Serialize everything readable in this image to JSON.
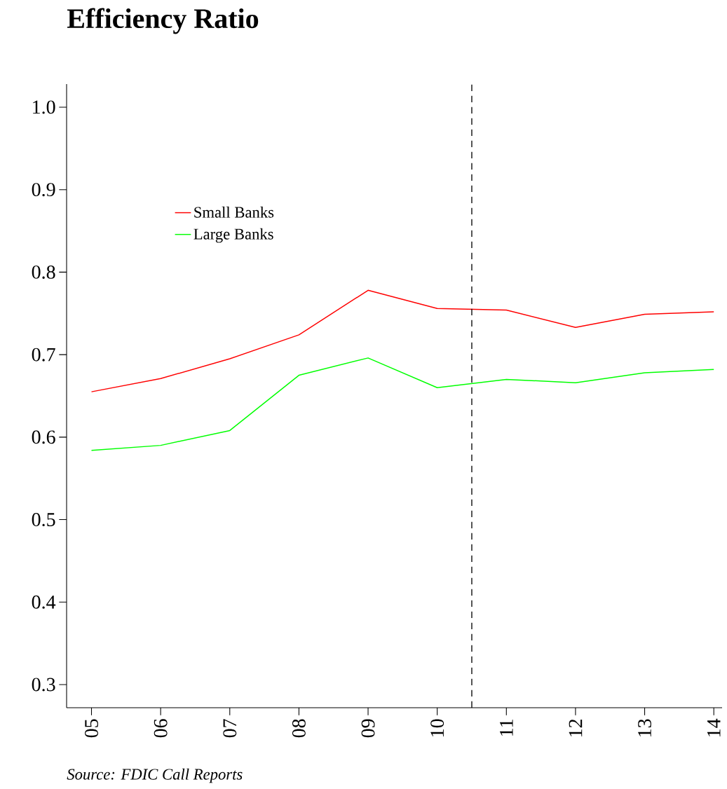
{
  "chart_data": {
    "type": "line",
    "title": "Efficiency Ratio",
    "x": [
      5,
      6,
      7,
      8,
      9,
      10,
      11,
      12,
      13,
      14
    ],
    "series": [
      {
        "name": "Small Banks",
        "color": "#ff0000",
        "values": [
          0.655,
          0.671,
          0.695,
          0.724,
          0.778,
          0.756,
          0.754,
          0.733,
          0.749,
          0.752
        ]
      },
      {
        "name": "Large Banks",
        "color": "#00ff00",
        "values": [
          0.584,
          0.59,
          0.608,
          0.675,
          0.696,
          0.66,
          0.67,
          0.666,
          0.678,
          0.682
        ]
      }
    ],
    "xlim": [
      4.64,
      14.12
    ],
    "ylim": [
      0.272,
      1.028
    ],
    "xticks": [
      {
        "value": 5,
        "label": "05"
      },
      {
        "value": 6,
        "label": "06"
      },
      {
        "value": 7,
        "label": "07"
      },
      {
        "value": 8,
        "label": "08"
      },
      {
        "value": 9,
        "label": "09"
      },
      {
        "value": 10,
        "label": "10"
      },
      {
        "value": 11,
        "label": "11"
      },
      {
        "value": 12,
        "label": "12"
      },
      {
        "value": 13,
        "label": "13"
      },
      {
        "value": 14,
        "label": "14"
      }
    ],
    "yticks": [
      0.3,
      0.4,
      0.5,
      0.6,
      0.7,
      0.8,
      0.9,
      {
        "value": 1.0,
        "label": "1.0"
      }
    ],
    "ref_lines": [
      {
        "axis": "x",
        "value": 10.5,
        "color": "#000000",
        "line_style": "dashed"
      }
    ],
    "annotations": [
      "*Source: FDIC Call Reports*"
    ],
    "legend": "top left",
    "marker": "none",
    "line_style": "solid",
    "grid": false
  }
}
